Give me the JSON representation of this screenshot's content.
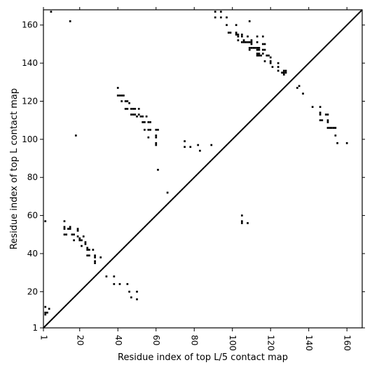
{
  "chart_data": {
    "type": "scatter",
    "xlabel": "Residue index of top L/5 contact map",
    "ylabel": "Residue index of top L contact map",
    "xlim": [
      1,
      168
    ],
    "ylim": [
      1,
      168
    ],
    "x_ticks": [
      1,
      20,
      40,
      60,
      80,
      100,
      120,
      140,
      160
    ],
    "y_ticks": [
      1,
      20,
      40,
      60,
      80,
      100,
      120,
      140,
      160
    ],
    "diagonal": true,
    "grid": false,
    "marker_color": "#000000",
    "series": [
      {
        "points": [
          [
            2,
            12
          ],
          [
            2,
            9
          ],
          [
            2,
            8
          ],
          [
            3,
            9
          ],
          [
            4,
            11
          ],
          [
            5,
            167
          ],
          [
            2,
            57
          ],
          [
            12,
            57
          ],
          [
            12,
            54
          ],
          [
            12,
            53
          ],
          [
            12,
            50
          ],
          [
            13,
            50
          ],
          [
            14,
            53
          ],
          [
            15,
            54
          ],
          [
            15,
            53
          ],
          [
            16,
            50
          ],
          [
            17,
            50
          ],
          [
            17,
            47
          ],
          [
            19,
            53
          ],
          [
            19,
            52
          ],
          [
            19,
            49
          ],
          [
            20,
            48
          ],
          [
            20,
            47
          ],
          [
            21,
            47
          ],
          [
            21,
            44
          ],
          [
            22,
            49
          ],
          [
            23,
            46
          ],
          [
            23,
            45
          ],
          [
            24,
            43
          ],
          [
            24,
            42
          ],
          [
            24,
            39
          ],
          [
            25,
            42
          ],
          [
            25,
            39
          ],
          [
            27,
            42
          ],
          [
            28,
            39
          ],
          [
            28,
            38
          ],
          [
            28,
            36
          ],
          [
            28,
            35
          ],
          [
            31,
            38
          ],
          [
            34,
            28
          ],
          [
            38,
            28
          ],
          [
            38,
            24
          ],
          [
            41,
            24
          ],
          [
            45,
            24
          ],
          [
            46,
            20
          ],
          [
            47,
            17
          ],
          [
            50,
            20
          ],
          [
            50,
            16
          ],
          [
            15,
            162
          ],
          [
            18,
            102
          ],
          [
            40,
            127
          ],
          [
            40,
            123
          ],
          [
            41,
            123
          ],
          [
            42,
            123
          ],
          [
            42,
            120
          ],
          [
            43,
            123
          ],
          [
            44,
            120
          ],
          [
            44,
            116
          ],
          [
            45,
            116
          ],
          [
            45,
            120
          ],
          [
            46,
            119
          ],
          [
            47,
            116
          ],
          [
            47,
            113
          ],
          [
            48,
            116
          ],
          [
            48,
            113
          ],
          [
            49,
            116
          ],
          [
            49,
            113
          ],
          [
            50,
            112
          ],
          [
            51,
            116
          ],
          [
            51,
            113
          ],
          [
            52,
            112
          ],
          [
            53,
            112
          ],
          [
            53,
            109
          ],
          [
            54,
            109
          ],
          [
            54,
            105
          ],
          [
            55,
            112
          ],
          [
            56,
            109
          ],
          [
            56,
            105
          ],
          [
            56,
            101
          ],
          [
            57,
            109
          ],
          [
            57,
            105
          ],
          [
            60,
            105
          ],
          [
            60,
            102
          ],
          [
            60,
            101
          ],
          [
            60,
            98
          ],
          [
            60,
            97
          ],
          [
            61,
            105
          ],
          [
            61,
            84
          ],
          [
            66,
            72
          ],
          [
            75,
            99
          ],
          [
            75,
            96
          ],
          [
            78,
            96
          ],
          [
            82,
            97
          ],
          [
            83,
            94
          ],
          [
            89,
            97
          ],
          [
            91,
            167
          ],
          [
            91,
            164
          ],
          [
            94,
            167
          ],
          [
            94,
            164
          ],
          [
            97,
            164
          ],
          [
            97,
            160
          ],
          [
            98,
            156
          ],
          [
            99,
            156
          ],
          [
            102,
            160
          ],
          [
            102,
            156
          ],
          [
            102,
            155
          ],
          [
            103,
            155
          ],
          [
            103,
            154
          ],
          [
            103,
            152
          ],
          [
            105,
            155
          ],
          [
            105,
            154
          ],
          [
            105,
            151
          ],
          [
            106,
            152
          ],
          [
            106,
            151
          ],
          [
            107,
            151
          ],
          [
            108,
            154
          ],
          [
            108,
            151
          ],
          [
            109,
            162
          ],
          [
            109,
            151
          ],
          [
            109,
            148
          ],
          [
            109,
            147
          ],
          [
            110,
            152
          ],
          [
            110,
            151
          ],
          [
            110,
            150
          ],
          [
            110,
            148
          ],
          [
            111,
            148
          ],
          [
            112,
            148
          ],
          [
            113,
            154
          ],
          [
            113,
            151
          ],
          [
            113,
            148
          ],
          [
            113,
            147
          ],
          [
            113,
            145
          ],
          [
            113,
            144
          ],
          [
            114,
            148
          ],
          [
            114,
            147
          ],
          [
            114,
            145
          ],
          [
            114,
            144
          ],
          [
            115,
            144
          ],
          [
            116,
            154
          ],
          [
            116,
            150
          ],
          [
            116,
            147
          ],
          [
            116,
            145
          ],
          [
            117,
            150
          ],
          [
            117,
            147
          ],
          [
            117,
            141
          ],
          [
            118,
            144
          ],
          [
            119,
            144
          ],
          [
            120,
            143
          ],
          [
            120,
            141
          ],
          [
            120,
            140
          ],
          [
            121,
            138
          ],
          [
            124,
            140
          ],
          [
            124,
            138
          ],
          [
            124,
            136
          ],
          [
            126,
            135
          ],
          [
            127,
            136
          ],
          [
            127,
            135
          ],
          [
            127,
            134
          ],
          [
            128,
            136
          ],
          [
            128,
            135
          ],
          [
            134,
            127
          ],
          [
            135,
            128
          ],
          [
            137,
            124
          ],
          [
            142,
            117
          ],
          [
            105,
            60
          ],
          [
            105,
            57
          ],
          [
            105,
            56
          ],
          [
            108,
            56
          ],
          [
            146,
            117
          ],
          [
            146,
            114
          ],
          [
            146,
            113
          ],
          [
            146,
            110
          ],
          [
            147,
            110
          ],
          [
            149,
            113
          ],
          [
            150,
            113
          ],
          [
            150,
            110
          ],
          [
            150,
            109
          ],
          [
            150,
            106
          ],
          [
            151,
            106
          ],
          [
            152,
            106
          ],
          [
            153,
            106
          ],
          [
            154,
            106
          ],
          [
            154,
            102
          ],
          [
            155,
            98
          ],
          [
            160,
            98
          ]
        ]
      }
    ]
  }
}
